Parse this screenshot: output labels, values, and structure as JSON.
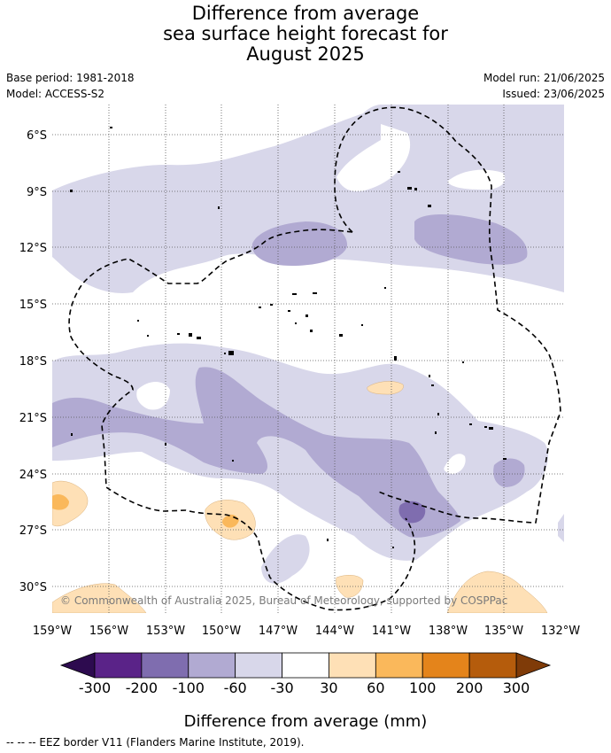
{
  "title": {
    "line1": "Difference from average",
    "line2": "sea surface height forecast for",
    "line3": "August 2025"
  },
  "meta": {
    "base_period": "Base period: 1981-2018",
    "model": "Model: ACCESS-S2",
    "model_run": "Model run: 21/06/2025",
    "issued": "Issued: 23/06/2025"
  },
  "map": {
    "lat_ticks": [
      "6°S",
      "9°S",
      "12°S",
      "15°S",
      "18°S",
      "21°S",
      "24°S",
      "27°S",
      "30°S"
    ],
    "lon_ticks": [
      "159°W",
      "156°W",
      "153°W",
      "150°W",
      "147°W",
      "144°W",
      "141°W",
      "138°W",
      "135°W",
      "132°W"
    ],
    "copyright": "© Commonwealth of Australia 2025, Bureau of Meteorology, supported by COSPPac"
  },
  "colorbar": {
    "ticks": [
      "-300",
      "-200",
      "-100",
      "-60",
      "-30",
      "30",
      "60",
      "100",
      "200",
      "300"
    ],
    "colors": [
      "#2d0b4f",
      "#5a2388",
      "#7f6daf",
      "#b1aad2",
      "#d8d7ea",
      "#ffffff",
      "#fee0b6",
      "#fab85b",
      "#e4841b",
      "#b55c0c",
      "#7f3b08"
    ],
    "label": "Difference from average (mm)"
  },
  "footnote": "--  --  -- EEZ border V11 (Flanders Marine Institute, 2019)."
}
